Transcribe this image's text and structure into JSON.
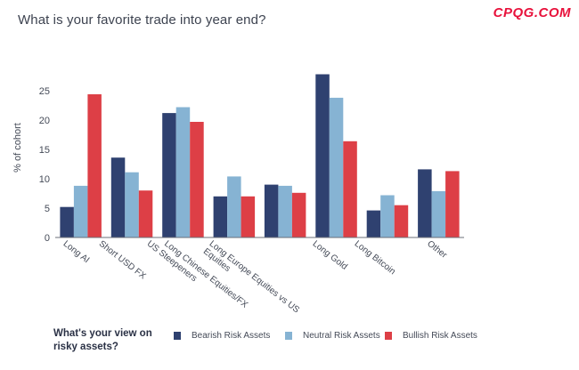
{
  "title": "What is your favorite trade into year end?",
  "watermark": "CPQG.COM",
  "legend": {
    "title_line1": "What's your view on",
    "title_line2": "risky assets?"
  },
  "chart_data": {
    "type": "bar",
    "title": "What is your favorite trade into year end?",
    "xlabel": "",
    "ylabel": "% of cohort",
    "ylim": [
      0,
      28
    ],
    "yticks": [
      0,
      5,
      10,
      15,
      20,
      25
    ],
    "grid": false,
    "legend_position": "bottom",
    "categories": [
      "Long AI",
      "Short USD FX",
      "US Steepeners",
      "Long Chinese Equities/FX",
      "Long Europe Equities vs US Equities",
      "Long Gold",
      "Long Bitcoin",
      "Other"
    ],
    "category_label_lines": [
      [
        "Long AI"
      ],
      [
        "Short USD FX"
      ],
      [
        "US Steepeners"
      ],
      [
        "Long Chinese Equities/FX"
      ],
      [
        "Long Europe Equities vs US",
        "Equities"
      ],
      [
        "Long Gold"
      ],
      [
        "Long Bitcoin"
      ],
      [
        "Other"
      ]
    ],
    "series": [
      {
        "name": "Bearish Risk Assets",
        "color": "#2f4170",
        "values": [
          5.2,
          13.6,
          21.2,
          7.0,
          9.0,
          27.8,
          4.6,
          11.6
        ]
      },
      {
        "name": "Neutral Risk Assets",
        "color": "#86b3d3",
        "values": [
          8.8,
          11.1,
          22.2,
          10.4,
          8.8,
          23.8,
          7.2,
          7.9
        ]
      },
      {
        "name": "Bullish Risk Assets",
        "color": "#dd3f46",
        "values": [
          24.4,
          8.0,
          19.7,
          7.0,
          7.6,
          16.4,
          5.5,
          11.3
        ]
      }
    ]
  }
}
